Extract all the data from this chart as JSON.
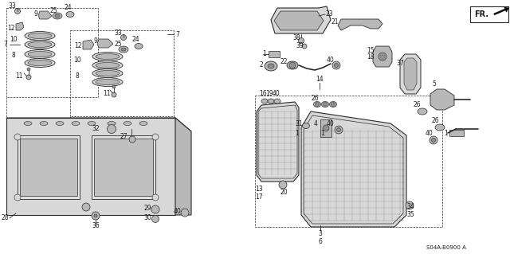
{
  "background_color": "#ffffff",
  "diagram_code": "S04A-B0900 A",
  "fig_width": 6.4,
  "fig_height": 3.19,
  "dpi": 100,
  "line_color": "#2a2a2a",
  "text_color": "#1a1a1a",
  "fill_light": "#d8d8d8",
  "fill_mid": "#b8b8b8",
  "fill_dark": "#909090"
}
